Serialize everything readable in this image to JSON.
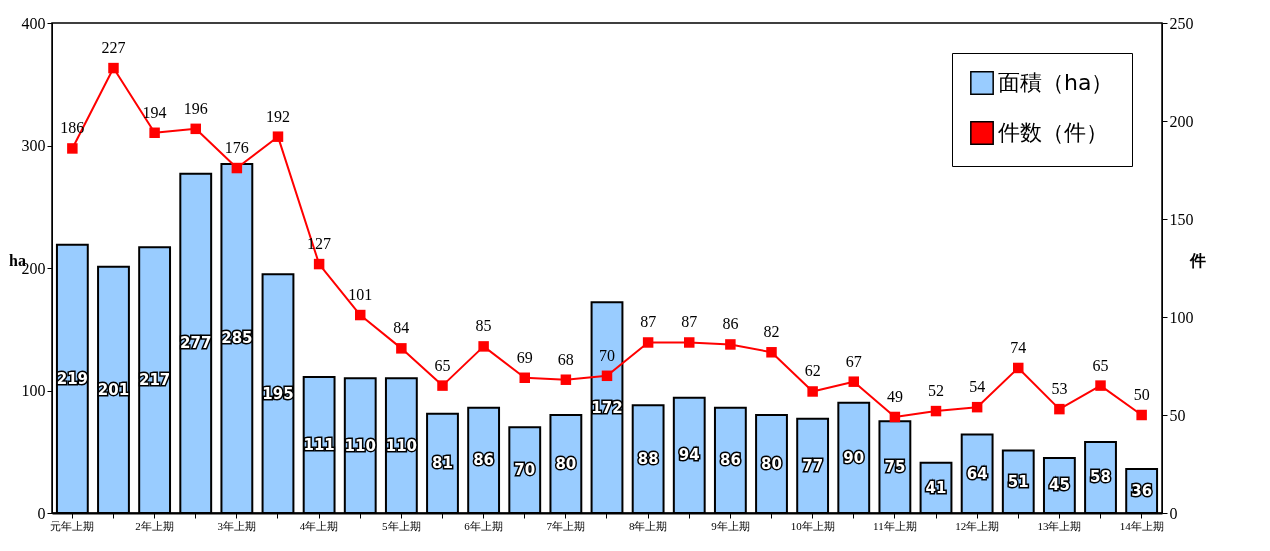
{
  "chart_data": {
    "type": "bar",
    "categories": [
      "元年上期",
      null,
      "2年上期",
      null,
      "3年上期",
      null,
      "4年上期",
      null,
      "5年上期",
      null,
      "6年上期",
      null,
      "7年上期",
      null,
      "8年上期",
      null,
      "9年上期",
      null,
      "10年上期",
      null,
      "11年上期",
      null,
      "12年上期",
      null,
      "13年上期",
      null,
      "14年上期"
    ],
    "series": [
      {
        "name": "面積（ha）",
        "color": "#99ccff",
        "values": [
          219,
          201,
          217,
          277,
          285,
          195,
          111,
          110,
          110,
          81,
          86,
          70,
          80,
          172,
          88,
          94,
          86,
          80,
          77,
          90,
          75,
          41,
          64,
          51,
          45,
          58,
          36
        ]
      },
      {
        "name": "件数（件）",
        "type": "line",
        "axis": "y2",
        "color": "#ff0000",
        "values": [
          186,
          227,
          194,
          196,
          176,
          192,
          127,
          101,
          84,
          65,
          85,
          69,
          68,
          70,
          87,
          87,
          86,
          82,
          62,
          67,
          49,
          52,
          54,
          74,
          53,
          65,
          50
        ]
      }
    ],
    "ylabel": "ha",
    "y2label": "件",
    "ylim": [
      0,
      400
    ],
    "yticks": [
      0,
      100,
      200,
      300,
      400
    ],
    "y2lim": [
      0,
      250
    ],
    "y2ticks": [
      0,
      50,
      100,
      150,
      200,
      250
    ],
    "data_labels": true,
    "legend": "top right",
    "marker": "square"
  }
}
